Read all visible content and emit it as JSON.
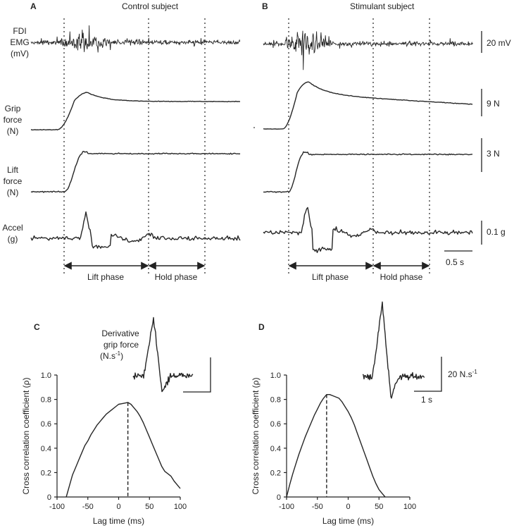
{
  "panels": {
    "A": {
      "letter": "A",
      "title": "Control subject"
    },
    "B": {
      "letter": "B",
      "title": "Stimulant subject"
    },
    "C": {
      "letter": "C"
    },
    "D": {
      "letter": "D"
    }
  },
  "row_labels": {
    "emg": [
      "FDI",
      "EMG",
      "(mV)"
    ],
    "grip": [
      "Grip",
      "force",
      "(N)"
    ],
    "lift": [
      "Lift",
      "force",
      "(N)"
    ],
    "accel": [
      "Accel",
      "(g)"
    ]
  },
  "scale_bars": {
    "emg": "20 mV",
    "grip": "9 N",
    "lift": "3 N",
    "accel": "0.1 g",
    "time": "0.5 s",
    "deriv_amp": "20 N.s",
    "deriv_amp_sup": "-1",
    "deriv_time": "1 s"
  },
  "phases": {
    "lift": "Lift phase",
    "hold": "Hold phase"
  },
  "inset": {
    "label_line1": "Derivative",
    "label_line2": "grip force",
    "label_line3": "(N.s",
    "label_sup": "-1",
    "label_close": ")"
  },
  "chart_data": [
    {
      "panel": "C",
      "type": "line",
      "xlabel": "Lag time (ms)",
      "ylabel": "Cross correlation coefficient (ρ)",
      "xlim": [
        -100,
        100
      ],
      "ylim": [
        0,
        1.0
      ],
      "xticks": [
        -100,
        -50,
        0,
        50,
        100
      ],
      "yticks": [
        0,
        0.2,
        0.4,
        0.6,
        0.8,
        1.0
      ],
      "peak_lag_ms": 15,
      "x": [
        -85,
        -80,
        -75,
        -70,
        -65,
        -60,
        -55,
        -50,
        -45,
        -40,
        -35,
        -30,
        -25,
        -20,
        -15,
        -10,
        -5,
        0,
        5,
        10,
        15,
        20,
        25,
        30,
        35,
        40,
        45,
        50,
        55,
        60,
        65,
        70,
        75,
        80,
        85,
        90,
        95,
        100
      ],
      "y": [
        0.0,
        0.09,
        0.18,
        0.24,
        0.3,
        0.36,
        0.42,
        0.46,
        0.51,
        0.55,
        0.59,
        0.62,
        0.65,
        0.68,
        0.7,
        0.72,
        0.74,
        0.76,
        0.765,
        0.77,
        0.775,
        0.76,
        0.73,
        0.7,
        0.66,
        0.61,
        0.55,
        0.49,
        0.43,
        0.37,
        0.31,
        0.25,
        0.21,
        0.19,
        0.17,
        0.13,
        0.1,
        0.07
      ]
    },
    {
      "panel": "D",
      "type": "line",
      "xlabel": "Lag time (ms)",
      "ylabel": "Cross correlation coefficient (ρ)",
      "xlim": [
        -100,
        100
      ],
      "ylim": [
        0,
        1.0
      ],
      "xticks": [
        -100,
        -50,
        0,
        50,
        100
      ],
      "yticks": [
        0,
        0.2,
        0.4,
        0.6,
        0.8,
        1.0
      ],
      "peak_lag_ms": -35,
      "x": [
        -100,
        -95,
        -90,
        -85,
        -80,
        -75,
        -70,
        -65,
        -60,
        -55,
        -50,
        -45,
        -40,
        -35,
        -30,
        -25,
        -20,
        -15,
        -10,
        -5,
        0,
        5,
        10,
        15,
        20,
        25,
        30,
        35,
        40,
        45,
        50,
        55,
        60
      ],
      "y": [
        0.0,
        0.1,
        0.19,
        0.27,
        0.35,
        0.42,
        0.49,
        0.55,
        0.61,
        0.67,
        0.72,
        0.77,
        0.81,
        0.84,
        0.84,
        0.83,
        0.82,
        0.81,
        0.78,
        0.74,
        0.7,
        0.65,
        0.59,
        0.52,
        0.45,
        0.38,
        0.31,
        0.24,
        0.17,
        0.11,
        0.06,
        0.03,
        0.0
      ]
    }
  ]
}
